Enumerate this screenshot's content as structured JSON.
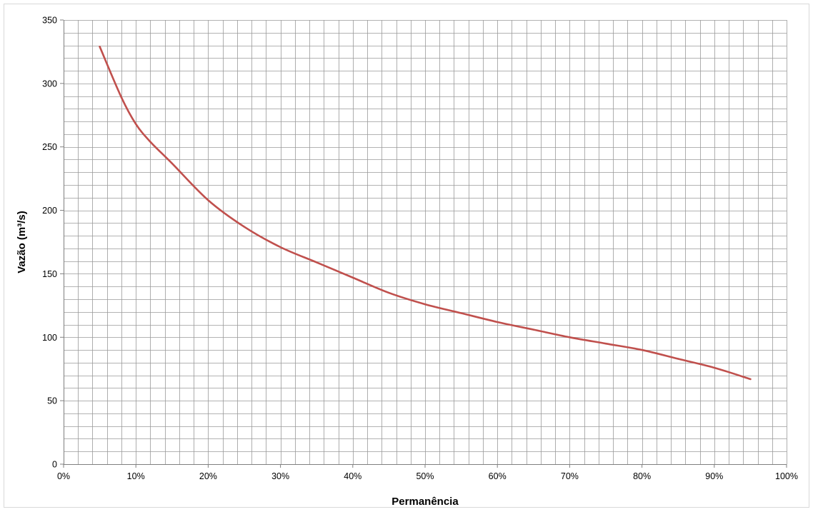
{
  "chart_data": {
    "type": "line",
    "title": "",
    "xlabel": "Permanência",
    "ylabel": "Vazão (m³/s)",
    "xlim": [
      0,
      100
    ],
    "ylim": [
      0,
      350
    ],
    "x_tick_labels": [
      "0%",
      "10%",
      "20%",
      "30%",
      "40%",
      "50%",
      "60%",
      "70%",
      "80%",
      "90%",
      "100%"
    ],
    "y_tick_labels": [
      "0",
      "50",
      "100",
      "150",
      "200",
      "250",
      "300",
      "350"
    ],
    "grid": true,
    "minor_grid": true,
    "legend": "none",
    "series": [
      {
        "color": "#c0504d",
        "x": [
          5,
          8,
          10,
          12,
          15,
          20,
          25,
          30,
          35,
          40,
          45,
          50,
          55,
          60,
          65,
          70,
          75,
          80,
          85,
          90,
          95
        ],
        "y": [
          329,
          289,
          268,
          254,
          237,
          208,
          187,
          171,
          159,
          147,
          135,
          126,
          119,
          112,
          106,
          100,
          95,
          90,
          83,
          76,
          67
        ]
      }
    ]
  }
}
